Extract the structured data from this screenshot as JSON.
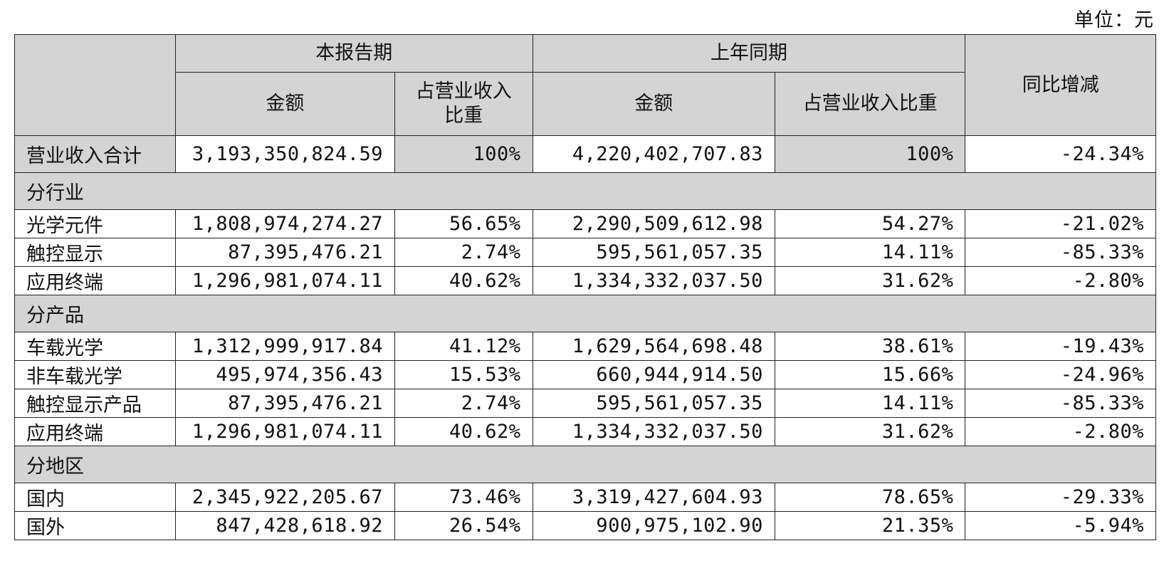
{
  "unit_label": "单位：元",
  "headers": {
    "current_period": "本报告期",
    "prior_period": "上年同期",
    "amount": "金额",
    "share_current": "占营业收入比重",
    "share_prior": "占营业收入比重",
    "yoy": "同比增减"
  },
  "total": {
    "label": "营业收入合计",
    "cur_amount": "3,193,350,824.59",
    "cur_share": "100%",
    "prev_amount": "4,220,402,707.83",
    "prev_share": "100%",
    "yoy": "-24.34%"
  },
  "sections": [
    {
      "title": "分行业",
      "rows": [
        {
          "label": "光学元件",
          "cur_amount": "1,808,974,274.27",
          "cur_share": "56.65%",
          "prev_amount": "2,290,509,612.98",
          "prev_share": "54.27%",
          "yoy": "-21.02%"
        },
        {
          "label": "触控显示",
          "cur_amount": "87,395,476.21",
          "cur_share": "2.74%",
          "prev_amount": "595,561,057.35",
          "prev_share": "14.11%",
          "yoy": "-85.33%"
        },
        {
          "label": "应用终端",
          "cur_amount": "1,296,981,074.11",
          "cur_share": "40.62%",
          "prev_amount": "1,334,332,037.50",
          "prev_share": "31.62%",
          "yoy": "-2.80%"
        }
      ]
    },
    {
      "title": "分产品",
      "rows": [
        {
          "label": "车载光学",
          "cur_amount": "1,312,999,917.84",
          "cur_share": "41.12%",
          "prev_amount": "1,629,564,698.48",
          "prev_share": "38.61%",
          "yoy": "-19.43%"
        },
        {
          "label": "非车载光学",
          "cur_amount": "495,974,356.43",
          "cur_share": "15.53%",
          "prev_amount": "660,944,914.50",
          "prev_share": "15.66%",
          "yoy": "-24.96%"
        },
        {
          "label": "触控显示产品",
          "cur_amount": "87,395,476.21",
          "cur_share": "2.74%",
          "prev_amount": "595,561,057.35",
          "prev_share": "14.11%",
          "yoy": "-85.33%"
        },
        {
          "label": "应用终端",
          "cur_amount": "1,296,981,074.11",
          "cur_share": "40.62%",
          "prev_amount": "1,334,332,037.50",
          "prev_share": "31.62%",
          "yoy": "-2.80%"
        }
      ]
    },
    {
      "title": "分地区",
      "rows": [
        {
          "label": "国内",
          "cur_amount": "2,345,922,205.67",
          "cur_share": "73.46%",
          "prev_amount": "3,319,427,604.93",
          "prev_share": "78.65%",
          "yoy": "-29.33%"
        },
        {
          "label": "国外",
          "cur_amount": "847,428,618.92",
          "cur_share": "26.54%",
          "prev_amount": "900,975,102.90",
          "prev_share": "21.35%",
          "yoy": "-5.94%"
        }
      ]
    }
  ],
  "colors": {
    "header_bg": "#d4d4d4",
    "border": "#222222"
  }
}
